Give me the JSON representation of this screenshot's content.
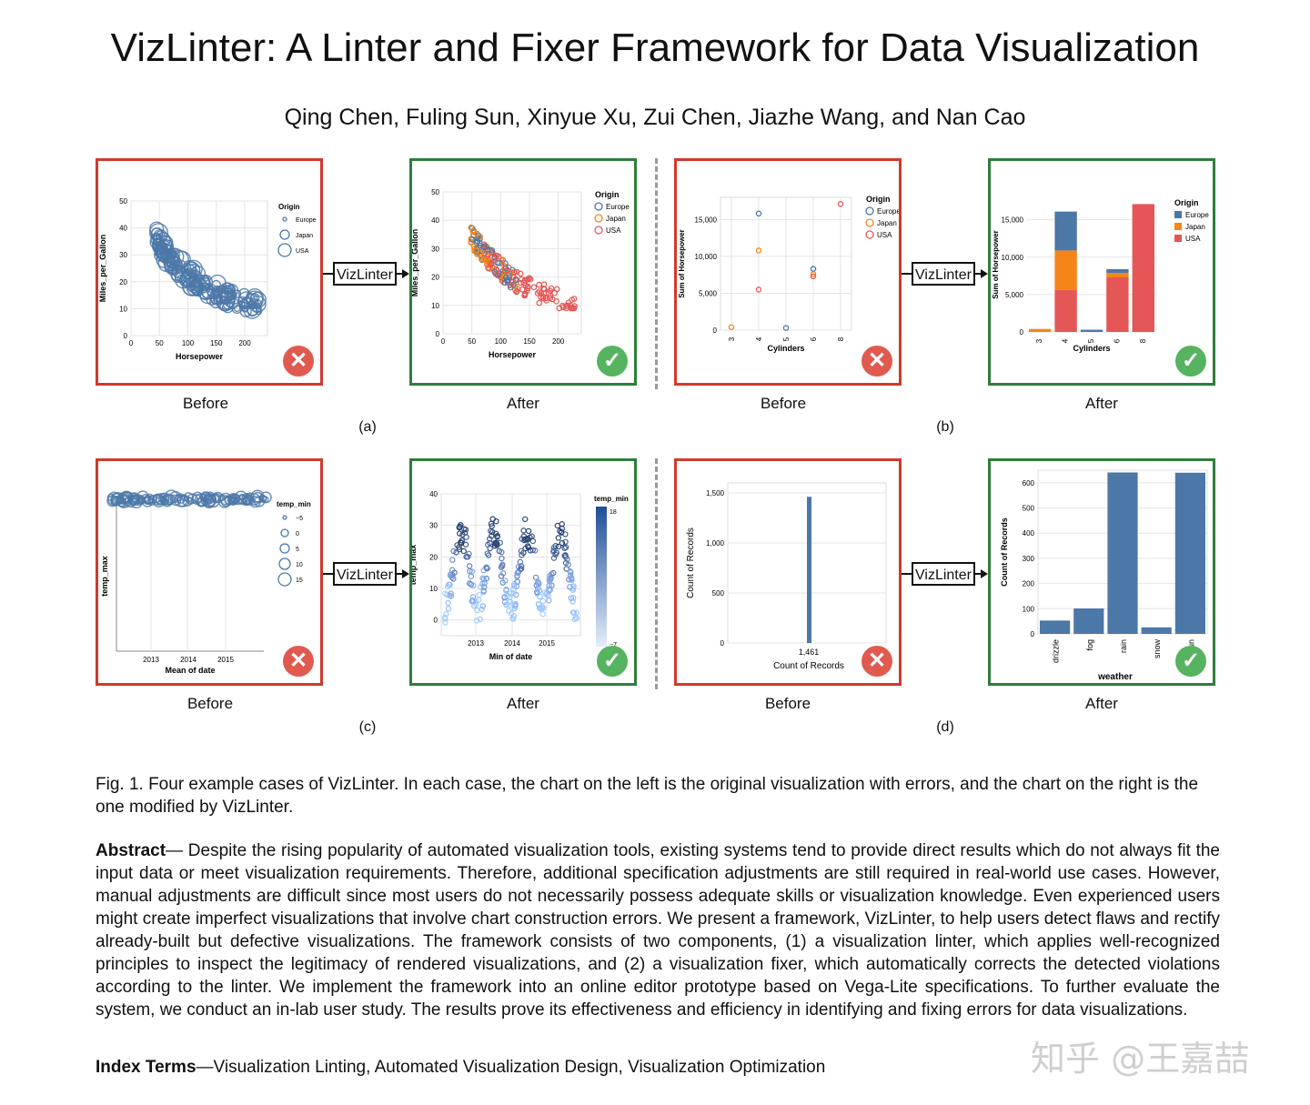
{
  "title": "VizLinter: A Linter and Fixer Framework for Data Visualization",
  "authors": "Qing Chen, Fuling Sun, Xinyue Xu, Zui Chen, Jiazhe Wang, and Nan Cao",
  "labels": {
    "before": "Before",
    "after": "After",
    "vizlinter": "VizLinter",
    "case_a": "(a)",
    "case_b": "(b)",
    "case_c": "(c)",
    "case_d": "(d)"
  },
  "caption": "Fig. 1. Four example cases of VizLinter. In each case, the chart on the left is the original visualization with errors, and the chart on the right is the one modified by VizLinter.",
  "abstract_label": "Abstract",
  "abstract_text": "— Despite the rising popularity of automated visualization tools, existing systems tend to provide direct results which do not always fit the input data or meet visualization requirements. Therefore, additional specification adjustments are still required in real-world use cases. However, manual adjustments are difficult since most users do not necessarily possess adequate skills or visualization knowledge. Even experienced users might create imperfect visualizations that involve chart construction errors. We present a framework, VizLinter, to help users detect flaws and rectify already-built but defective visualizations. The framework consists of two components, (1) a visualization linter, which applies well-recognized principles to inspect the legitimacy of rendered visualizations, and (2) a visualization fixer, which automatically corrects the detected violations according to the linter. We implement the framework into an online editor prototype based on Vega-Lite specifications. To further evaluate the system, we conduct an in-lab user study. The results prove its effectiveness and efficiency in identifying and fixing errors for data visualizations.",
  "index_label": "Index Terms",
  "index_text": "—Visualization Linting, Automated Visualization Design, Visualization Optimization",
  "watermark": "知乎 @王嘉喆",
  "colors": {
    "europe": "#4c78a8",
    "japan": "#f58518",
    "usa": "#e45756",
    "bad": "#d1392b",
    "good": "#2e7d3a"
  },
  "chart_data": [
    {
      "id": "a_before",
      "type": "scatter",
      "xlabel": "Horsepower",
      "ylabel": "Miles_per_Gallon",
      "xlim": [
        0,
        240
      ],
      "ylim": [
        0,
        50
      ],
      "xticks": [
        "0",
        "50",
        "100",
        "150",
        "200"
      ],
      "yticks": [
        "0",
        "10",
        "20",
        "30",
        "40",
        "50"
      ],
      "legend": {
        "title": "Origin",
        "entries": [
          "Europe",
          "Japan",
          "USA"
        ]
      }
    },
    {
      "id": "a_after",
      "type": "scatter",
      "xlabel": "Horsepower",
      "ylabel": "Miles_per_Gallon",
      "xlim": [
        0,
        240
      ],
      "ylim": [
        0,
        50
      ],
      "xticks": [
        "0",
        "50",
        "100",
        "150",
        "200"
      ],
      "yticks": [
        "0",
        "10",
        "20",
        "30",
        "40",
        "50"
      ],
      "legend": {
        "title": "Origin",
        "entries": [
          "Europe",
          "Japan",
          "USA"
        ]
      }
    },
    {
      "id": "b_before",
      "type": "scatter",
      "xlabel": "Cylinders",
      "ylabel": "Sum of Horsepower",
      "x": [
        "3",
        "4",
        "5",
        "6",
        "8"
      ],
      "ylim": [
        0,
        18000
      ],
      "yticks": [
        "0",
        "5,000",
        "10,000",
        "15,000"
      ],
      "series": [
        {
          "name": "Europe",
          "values": [
            0,
            15800,
            300,
            8300,
            0
          ]
        },
        {
          "name": "Japan",
          "values": [
            400,
            10800,
            0,
            7600,
            0
          ]
        },
        {
          "name": "USA",
          "values": [
            0,
            5500,
            0,
            7300,
            17100
          ]
        }
      ],
      "legend": {
        "title": "Origin",
        "entries": [
          "Europe",
          "Japan",
          "USA"
        ]
      }
    },
    {
      "id": "b_after",
      "type": "bar",
      "stacked": true,
      "xlabel": "Cylinders",
      "ylabel": "Sum of Horsepower",
      "categories": [
        "3",
        "4",
        "5",
        "6",
        "8"
      ],
      "ylim": [
        0,
        18000
      ],
      "yticks": [
        "0",
        "5,000",
        "10,000",
        "15,000"
      ],
      "series": [
        {
          "name": "USA",
          "values": [
            0,
            5600,
            0,
            7300,
            17100
          ]
        },
        {
          "name": "Japan",
          "values": [
            400,
            5300,
            0,
            600,
            0
          ]
        },
        {
          "name": "Europe",
          "values": [
            0,
            5200,
            300,
            500,
            0
          ]
        }
      ],
      "legend": {
        "title": "Origin",
        "entries": [
          "Europe",
          "Japan",
          "USA"
        ]
      }
    },
    {
      "id": "c_before",
      "type": "scatter",
      "xlabel": "Mean of date",
      "ylabel": "temp_max",
      "xticks": [
        "2013",
        "2014",
        "2015"
      ],
      "legend": {
        "title": "temp_min",
        "entries": [
          "−5",
          "0",
          "5",
          "10",
          "15"
        ]
      }
    },
    {
      "id": "c_after",
      "type": "scatter",
      "xlabel": "Min of date",
      "ylabel": "temp_max",
      "ylim": [
        -5,
        40
      ],
      "xticks": [
        "2013",
        "2014",
        "2015"
      ],
      "yticks": [
        "0",
        "10",
        "20",
        "30",
        "40"
      ],
      "legend": {
        "title": "temp_min",
        "max": "18",
        "min": "−7"
      }
    },
    {
      "id": "d_before",
      "type": "bar",
      "xlabel": "Count of Records",
      "ylabel": "Count of Records",
      "categories": [
        "1,461"
      ],
      "values": [
        1461
      ],
      "ylim": [
        0,
        1600
      ],
      "yticks": [
        "0",
        "500",
        "1,000",
        "1,500"
      ]
    },
    {
      "id": "d_after",
      "type": "bar",
      "xlabel": "weather",
      "ylabel": "Count of Records",
      "categories": [
        "drizzle",
        "fog",
        "rain",
        "snow",
        "sun"
      ],
      "values": [
        53,
        101,
        641,
        26,
        640
      ],
      "ylim": [
        0,
        650
      ],
      "yticks": [
        "0",
        "100",
        "200",
        "300",
        "400",
        "500",
        "600"
      ]
    }
  ]
}
